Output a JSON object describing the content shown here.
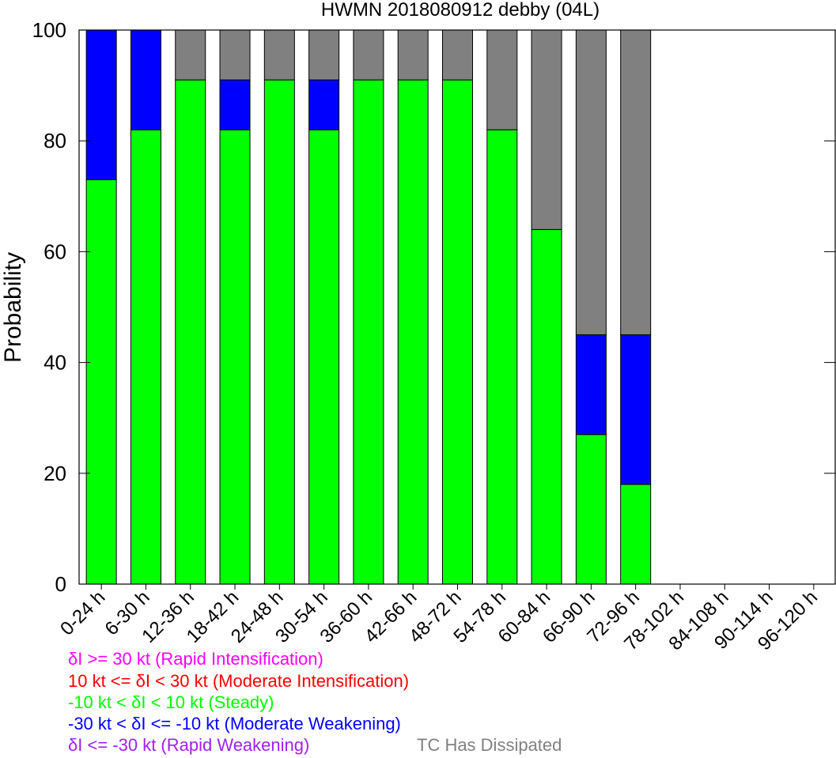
{
  "chart_data": {
    "type": "bar",
    "title": "HWMN 2018080912 debby (04L)",
    "xlabel": "",
    "ylabel": "Probability",
    "ylim": [
      0,
      100
    ],
    "yticks": [
      0,
      20,
      40,
      60,
      80,
      100
    ],
    "stacked": true,
    "categories": [
      "0-24 h",
      "6-30 h",
      "12-36 h",
      "18-42 h",
      "24-48 h",
      "30-54 h",
      "36-60 h",
      "42-66 h",
      "48-72 h",
      "54-78 h",
      "60-84 h",
      "66-90 h",
      "72-96 h",
      "78-102 h",
      "84-108 h",
      "90-114 h",
      "96-120 h"
    ],
    "series": [
      {
        "name": "-10 kt < δI < 10 kt (Steady)",
        "color": "#00ff00",
        "values": [
          73,
          82,
          91,
          82,
          91,
          82,
          91,
          91,
          91,
          82,
          64,
          27,
          18,
          0,
          0,
          0,
          0
        ]
      },
      {
        "name": "-30 kt < δI <= -10 kt (Moderate Weakening)",
        "color": "#0000ff",
        "values": [
          27,
          18,
          0,
          9,
          0,
          9,
          0,
          0,
          0,
          0,
          0,
          18,
          27,
          0,
          0,
          0,
          0
        ]
      },
      {
        "name": "TC Has Dissipated",
        "color": "#808080",
        "values": [
          0,
          0,
          9,
          9,
          9,
          9,
          9,
          9,
          9,
          18,
          36,
          55,
          55,
          0,
          0,
          0,
          0
        ]
      }
    ],
    "grid": false
  },
  "legend": [
    {
      "text": "δI >= 30 kt (Rapid Intensification)",
      "color": "#ff00ff"
    },
    {
      "text": "10 kt <= δI < 30 kt (Moderate Intensification)",
      "color": "#ff0000"
    },
    {
      "text": "-10 kt < δI < 10 kt (Steady)",
      "color": "#00ff00"
    },
    {
      "text": "-30 kt < δI <= -10 kt (Moderate Weakening)",
      "color": "#0000ff"
    },
    {
      "text": "δI <= -30 kt (Rapid Weakening)",
      "color": "#a020f0"
    },
    {
      "text": "TC Has Dissipated",
      "color": "#808080"
    }
  ]
}
